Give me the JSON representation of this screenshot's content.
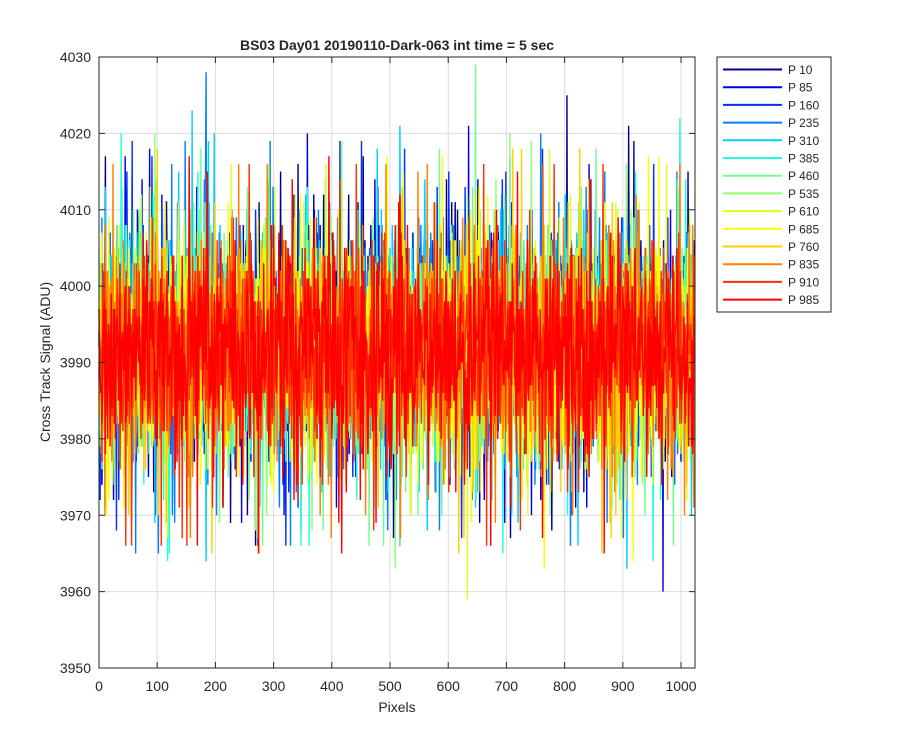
{
  "chart_data": {
    "type": "line",
    "title": "BS03 Day01 20190110-Dark-063 int time = 5 sec",
    "xlabel": "Pixels",
    "ylabel": "Cross Track Signal (ADU)",
    "xlim": [
      0,
      1024
    ],
    "ylim": [
      3950,
      4030
    ],
    "xticks": [
      0,
      100,
      200,
      300,
      400,
      500,
      600,
      700,
      800,
      900,
      1000
    ],
    "yticks": [
      3950,
      3960,
      3970,
      3980,
      3990,
      4000,
      4010,
      4020,
      4030
    ],
    "grid": true,
    "legend_position": "outside-top-right",
    "x_range": [
      0,
      1023
    ],
    "series": [
      {
        "name": "P 10",
        "color": "#00008f",
        "mean": 3993.2,
        "spread": 7.2,
        "min": 3966,
        "max": 4025
      },
      {
        "name": "P 85",
        "color": "#0000df",
        "mean": 3992.8,
        "spread": 7.2,
        "min": 3960,
        "max": 4021
      },
      {
        "name": "P 160",
        "color": "#002fff",
        "mean": 3992.6,
        "spread": 7.1,
        "min": 3966,
        "max": 4019
      },
      {
        "name": "P 235",
        "color": "#007fff",
        "mean": 3992.4,
        "spread": 7.2,
        "min": 3965,
        "max": 4028
      },
      {
        "name": "P 310",
        "color": "#00cfff",
        "mean": 3992.3,
        "spread": 7.1,
        "min": 3963,
        "max": 4023
      },
      {
        "name": "P 385",
        "color": "#20ffdf",
        "mean": 3992.2,
        "spread": 7.1,
        "min": 3964,
        "max": 4022
      },
      {
        "name": "P 460",
        "color": "#70ff8f",
        "mean": 3992.1,
        "spread": 7.0,
        "min": 3966,
        "max": 4029
      },
      {
        "name": "P 535",
        "color": "#8fff70",
        "mean": 3992.0,
        "spread": 7.0,
        "min": 3963,
        "max": 4020
      },
      {
        "name": "P 610",
        "color": "#dfff20",
        "mean": 3991.9,
        "spread": 7.0,
        "min": 3959,
        "max": 4018
      },
      {
        "name": "P 685",
        "color": "#ffff00",
        "mean": 3991.8,
        "spread": 7.0,
        "min": 3963,
        "max": 4017
      },
      {
        "name": "P 760",
        "color": "#ffcf00",
        "mean": 3991.7,
        "spread": 7.0,
        "min": 3965,
        "max": 4018
      },
      {
        "name": "P 835",
        "color": "#ff7f00",
        "mean": 3991.6,
        "spread": 7.0,
        "min": 3967,
        "max": 4016
      },
      {
        "name": "P 910",
        "color": "#ff3000",
        "mean": 3991.5,
        "spread": 6.9,
        "min": 3966,
        "max": 4016
      },
      {
        "name": "P 985",
        "color": "#ff0000",
        "mean": 3991.4,
        "spread": 6.9,
        "min": 3965,
        "max": 4017
      }
    ]
  }
}
